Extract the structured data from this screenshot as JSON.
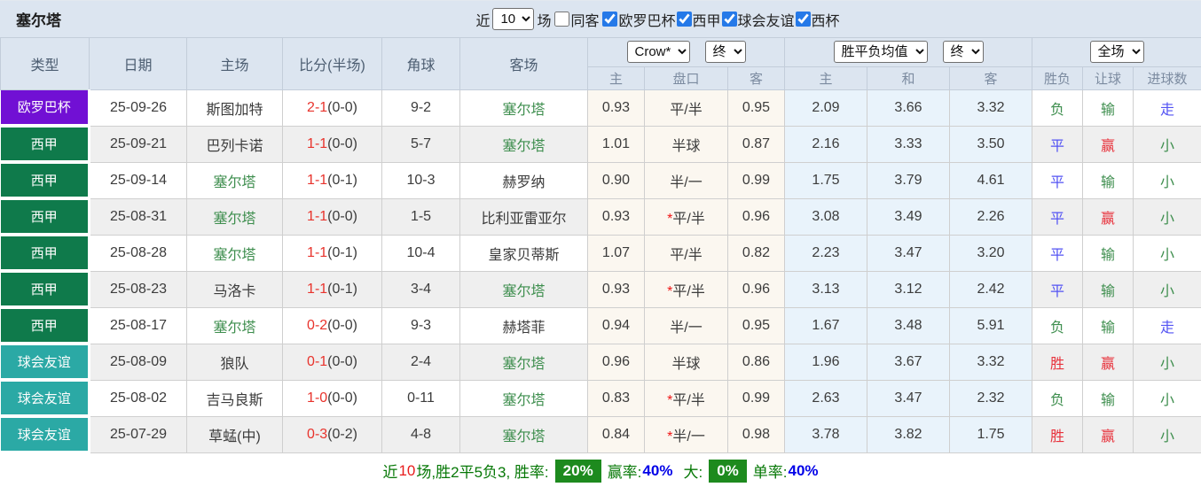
{
  "header_bar": {
    "team_title": "塞尔塔",
    "recent_label": "近",
    "recent_value": "10",
    "games_label": "场",
    "same_opponent_label": "同客",
    "filters": [
      {
        "label": "欧罗巴杯",
        "checked": true
      },
      {
        "label": "西甲",
        "checked": true
      },
      {
        "label": "球会友谊",
        "checked": true
      },
      {
        "label": "西杯",
        "checked": true
      }
    ]
  },
  "table": {
    "left_columns": [
      "类型",
      "日期",
      "主场",
      "比分(半场)",
      "角球",
      "客场"
    ],
    "odds_group": {
      "company_select": "Crow*",
      "state_select": "终",
      "sub_headers": [
        "主",
        "盘口",
        "客"
      ]
    },
    "avg_group": {
      "type_select": "胜平负均值",
      "state_select": "终",
      "sub_headers": [
        "主",
        "和",
        "客"
      ]
    },
    "result_group": {
      "scope_select": "全场",
      "sub_headers": [
        "胜负",
        "让球",
        "进球数"
      ]
    },
    "rows": [
      {
        "type": "欧罗巴杯",
        "type_cls": "purple",
        "date": "25-09-26",
        "home": "斯图加特",
        "home_team": false,
        "score": "2-1",
        "half": "(0-0)",
        "corner": "9-2",
        "away": "塞尔塔",
        "away_team": true,
        "odds_home": "0.93",
        "star": false,
        "handicap": "平/半",
        "odds_away": "0.95",
        "avg_home": "2.09",
        "avg_draw": "3.66",
        "avg_away": "3.32",
        "wdl": "负",
        "wdl_cls": "c-green",
        "cover": "输",
        "cover_cls": "c-green",
        "goals": "走",
        "goals_cls": "c-blue"
      },
      {
        "type": "西甲",
        "type_cls": "green",
        "date": "25-09-21",
        "home": "巴列卡诺",
        "home_team": false,
        "score": "1-1",
        "half": "(0-0)",
        "corner": "5-7",
        "away": "塞尔塔",
        "away_team": true,
        "odds_home": "1.01",
        "star": false,
        "handicap": "半球",
        "odds_away": "0.87",
        "avg_home": "2.16",
        "avg_draw": "3.33",
        "avg_away": "3.50",
        "wdl": "平",
        "wdl_cls": "c-blue",
        "cover": "赢",
        "cover_cls": "c-red",
        "goals": "小",
        "goals_cls": "c-green"
      },
      {
        "type": "西甲",
        "type_cls": "green",
        "date": "25-09-14",
        "home": "塞尔塔",
        "home_team": true,
        "score": "1-1",
        "half": "(0-1)",
        "corner": "10-3",
        "away": "赫罗纳",
        "away_team": false,
        "odds_home": "0.90",
        "star": false,
        "handicap": "半/一",
        "odds_away": "0.99",
        "avg_home": "1.75",
        "avg_draw": "3.79",
        "avg_away": "4.61",
        "wdl": "平",
        "wdl_cls": "c-blue",
        "cover": "输",
        "cover_cls": "c-green",
        "goals": "小",
        "goals_cls": "c-green"
      },
      {
        "type": "西甲",
        "type_cls": "green",
        "date": "25-08-31",
        "home": "塞尔塔",
        "home_team": true,
        "score": "1-1",
        "half": "(0-0)",
        "corner": "1-5",
        "away": "比利亚雷亚尔",
        "away_team": false,
        "odds_home": "0.93",
        "star": true,
        "handicap": "平/半",
        "odds_away": "0.96",
        "avg_home": "3.08",
        "avg_draw": "3.49",
        "avg_away": "2.26",
        "wdl": "平",
        "wdl_cls": "c-blue",
        "cover": "赢",
        "cover_cls": "c-red",
        "goals": "小",
        "goals_cls": "c-green"
      },
      {
        "type": "西甲",
        "type_cls": "green",
        "date": "25-08-28",
        "home": "塞尔塔",
        "home_team": true,
        "score": "1-1",
        "half": "(0-1)",
        "corner": "10-4",
        "away": "皇家贝蒂斯",
        "away_team": false,
        "odds_home": "1.07",
        "star": false,
        "handicap": "平/半",
        "odds_away": "0.82",
        "avg_home": "2.23",
        "avg_draw": "3.47",
        "avg_away": "3.20",
        "wdl": "平",
        "wdl_cls": "c-blue",
        "cover": "输",
        "cover_cls": "c-green",
        "goals": "小",
        "goals_cls": "c-green"
      },
      {
        "type": "西甲",
        "type_cls": "green",
        "date": "25-08-23",
        "home": "马洛卡",
        "home_team": false,
        "score": "1-1",
        "half": "(0-1)",
        "corner": "3-4",
        "away": "塞尔塔",
        "away_team": true,
        "odds_home": "0.93",
        "star": true,
        "handicap": "平/半",
        "odds_away": "0.96",
        "avg_home": "3.13",
        "avg_draw": "3.12",
        "avg_away": "2.42",
        "wdl": "平",
        "wdl_cls": "c-blue",
        "cover": "输",
        "cover_cls": "c-green",
        "goals": "小",
        "goals_cls": "c-green"
      },
      {
        "type": "西甲",
        "type_cls": "green",
        "date": "25-08-17",
        "home": "塞尔塔",
        "home_team": true,
        "score": "0-2",
        "half": "(0-0)",
        "corner": "9-3",
        "away": "赫塔菲",
        "away_team": false,
        "odds_home": "0.94",
        "star": false,
        "handicap": "半/一",
        "odds_away": "0.95",
        "avg_home": "1.67",
        "avg_draw": "3.48",
        "avg_away": "5.91",
        "wdl": "负",
        "wdl_cls": "c-green",
        "cover": "输",
        "cover_cls": "c-green",
        "goals": "走",
        "goals_cls": "c-blue"
      },
      {
        "type": "球会友谊",
        "type_cls": "teal",
        "date": "25-08-09",
        "home": "狼队",
        "home_team": false,
        "score": "0-1",
        "half": "(0-0)",
        "corner": "2-4",
        "away": "塞尔塔",
        "away_team": true,
        "odds_home": "0.96",
        "star": false,
        "handicap": "半球",
        "odds_away": "0.86",
        "avg_home": "1.96",
        "avg_draw": "3.67",
        "avg_away": "3.32",
        "wdl": "胜",
        "wdl_cls": "c-red",
        "cover": "赢",
        "cover_cls": "c-red",
        "goals": "小",
        "goals_cls": "c-green"
      },
      {
        "type": "球会友谊",
        "type_cls": "teal",
        "date": "25-08-02",
        "home": "吉马良斯",
        "home_team": false,
        "score": "1-0",
        "half": "(0-0)",
        "corner": "0-11",
        "away": "塞尔塔",
        "away_team": true,
        "odds_home": "0.83",
        "star": true,
        "handicap": "平/半",
        "odds_away": "0.99",
        "avg_home": "2.63",
        "avg_draw": "3.47",
        "avg_away": "2.32",
        "wdl": "负",
        "wdl_cls": "c-green",
        "cover": "输",
        "cover_cls": "c-green",
        "goals": "小",
        "goals_cls": "c-green"
      },
      {
        "type": "球会友谊",
        "type_cls": "teal",
        "date": "25-07-29",
        "home": "草蜢(中)",
        "home_team": false,
        "score": "0-3",
        "half": "(0-2)",
        "corner": "4-8",
        "away": "塞尔塔",
        "away_team": true,
        "odds_home": "0.84",
        "star": true,
        "handicap": "半/一",
        "odds_away": "0.98",
        "avg_home": "3.78",
        "avg_draw": "3.82",
        "avg_away": "1.75",
        "wdl": "胜",
        "wdl_cls": "c-red",
        "cover": "赢",
        "cover_cls": "c-red",
        "goals": "小",
        "goals_cls": "c-green"
      }
    ]
  },
  "summary": {
    "prefix": "近",
    "count": "10",
    "record_text": "场,胜2平5负3, 胜率:",
    "win_rate": "20%",
    "cover_label": "赢率:",
    "cover_rate": "40%",
    "big_label": "大:",
    "big_rate": "0%",
    "single_label": "单率:",
    "single_rate": "40%"
  }
}
